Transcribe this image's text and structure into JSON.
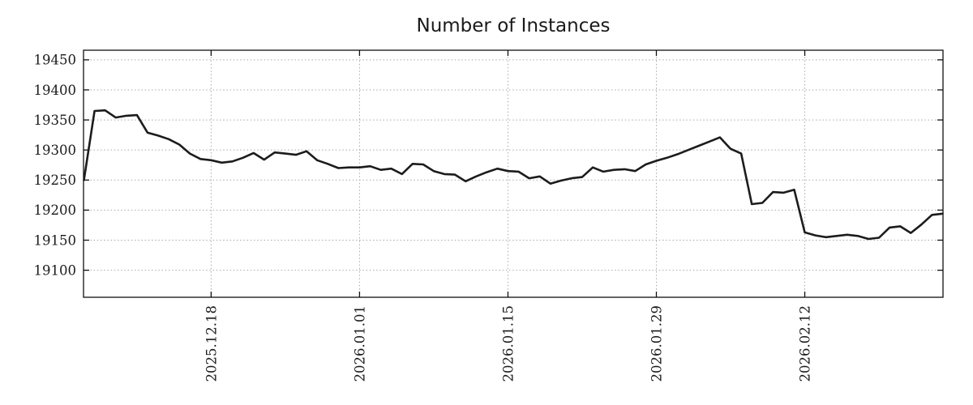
{
  "title": "Number of Instances",
  "chart_data": {
    "type": "line",
    "title": "Number of Instances",
    "xlabel": "",
    "ylabel": "",
    "legend": null,
    "grid": "dotted",
    "line_color": "#1c1c1c",
    "grid_color": "#a9a9a9",
    "frame_color": "#111111",
    "background": "#ffffff",
    "ylim": [
      19055,
      19466
    ],
    "y_ticks": [
      19100,
      19150,
      19200,
      19250,
      19300,
      19350,
      19400,
      19450
    ],
    "x_tick_labels": [
      "2025.12.18",
      "2026.01.01",
      "2026.01.15",
      "2026.01.29",
      "2026.02.12"
    ],
    "x_tick_indices": [
      12,
      26,
      40,
      54,
      68
    ],
    "x": [
      "2025.12.06",
      "2025.12.07",
      "2025.12.08",
      "2025.12.09",
      "2025.12.10",
      "2025.12.11",
      "2025.12.12",
      "2025.12.13",
      "2025.12.14",
      "2025.12.15",
      "2025.12.16",
      "2025.12.17",
      "2025.12.18",
      "2025.12.19",
      "2025.12.20",
      "2025.12.21",
      "2025.12.22",
      "2025.12.23",
      "2025.12.24",
      "2025.12.25",
      "2025.12.26",
      "2025.12.27",
      "2025.12.28",
      "2025.12.29",
      "2025.12.30",
      "2025.12.31",
      "2026.01.01",
      "2026.01.02",
      "2026.01.03",
      "2026.01.04",
      "2026.01.05",
      "2026.01.06",
      "2026.01.07",
      "2026.01.08",
      "2026.01.09",
      "2026.01.10",
      "2026.01.11",
      "2026.01.12",
      "2026.01.13",
      "2026.01.14",
      "2026.01.15",
      "2026.01.16",
      "2026.01.17",
      "2026.01.18",
      "2026.01.19",
      "2026.01.20",
      "2026.01.21",
      "2026.01.22",
      "2026.01.23",
      "2026.01.24",
      "2026.01.25",
      "2026.01.26",
      "2026.01.27",
      "2026.01.28",
      "2026.01.29",
      "2026.01.30",
      "2026.01.31",
      "2026.02.01",
      "2026.02.02",
      "2026.02.03",
      "2026.02.04",
      "2026.02.05",
      "2026.02.06",
      "2026.02.07",
      "2026.02.08",
      "2026.02.09",
      "2026.02.10",
      "2026.02.11",
      "2026.02.12",
      "2026.02.13",
      "2026.02.14",
      "2026.02.15",
      "2026.02.16",
      "2026.02.17",
      "2026.02.18",
      "2026.02.19",
      "2026.02.20",
      "2026.02.21",
      "2026.02.22",
      "2026.02.23",
      "2026.02.24",
      "2026.02.25"
    ],
    "values": [
      19250,
      19365,
      19366,
      19354,
      19357,
      19358,
      19329,
      19324,
      19318,
      19309,
      19294,
      19285,
      19283,
      19279,
      19281,
      19287,
      19295,
      19284,
      19296,
      19294,
      19292,
      19298,
      19283,
      19277,
      19270,
      19271,
      19271,
      19273,
      19267,
      19269,
      19260,
      19277,
      19276,
      19265,
      19260,
      19259,
      19248,
      19256,
      19263,
      19269,
      19265,
      19264,
      19253,
      19256,
      19244,
      19249,
      19253,
      19255,
      19271,
      19264,
      19267,
      19268,
      19265,
      19276,
      19282,
      19287,
      19293,
      19300,
      19307,
      19314,
      19321,
      19302,
      19294,
      19210,
      19212,
      19230,
      19229,
      19234,
      19163,
      19158,
      19155,
      19157,
      19159,
      19157,
      19152,
      19154,
      19171,
      19173,
      19162,
      19176,
      19192,
      19194
    ]
  }
}
